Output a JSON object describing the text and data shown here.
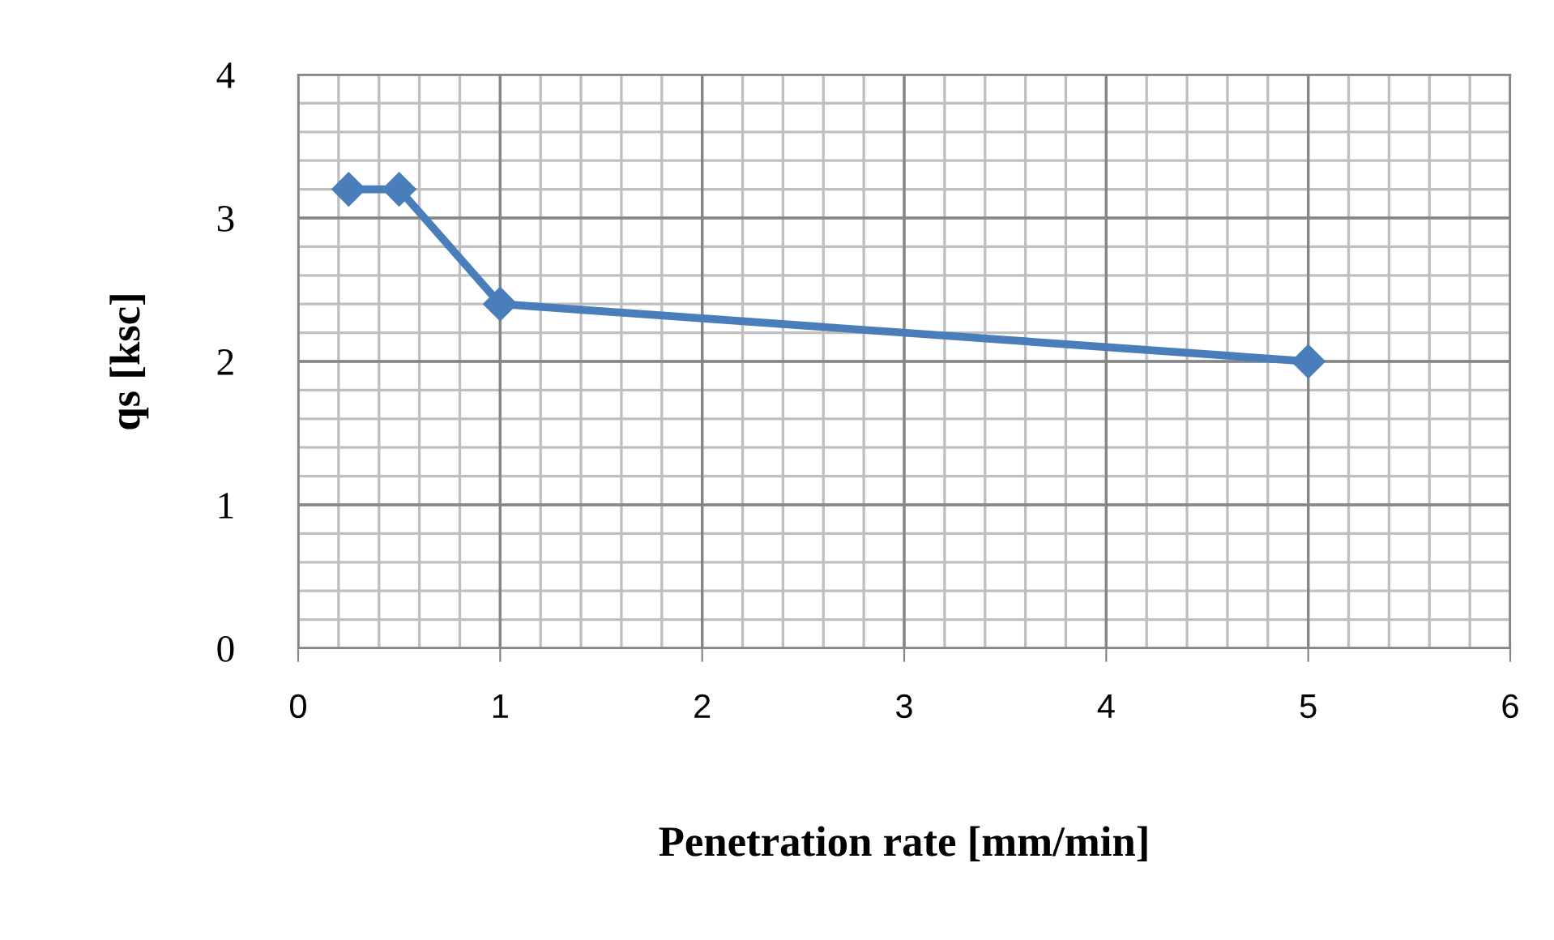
{
  "chart_data": {
    "type": "line",
    "xlabel": "Penetration rate [mm/min]",
    "ylabel": "qs [ksc]",
    "x": [
      0.25,
      0.5,
      1,
      5
    ],
    "series": [
      {
        "color": "#4a7ebb",
        "values": [
          3.2,
          3.2,
          2.4,
          2.0
        ]
      }
    ],
    "xlim": [
      0,
      6
    ],
    "ylim": [
      0,
      4
    ],
    "xticks": [
      0,
      1,
      2,
      3,
      4,
      5,
      6
    ],
    "yticks": [
      0,
      1,
      2,
      3,
      4
    ],
    "grid": true,
    "marker": "diamond",
    "line_style": "solid"
  }
}
